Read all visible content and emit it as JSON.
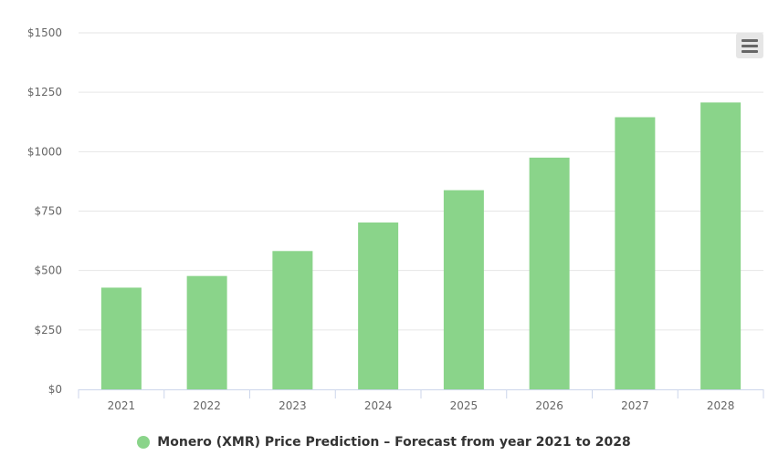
{
  "chart_data": {
    "type": "bar",
    "categories": [
      "2021",
      "2022",
      "2023",
      "2024",
      "2025",
      "2026",
      "2027",
      "2028"
    ],
    "series": [
      {
        "name": "Monero (XMR) Price Prediction – Forecast from year 2021 to 2028",
        "values": [
          428,
          477,
          582,
          702,
          838,
          975,
          1145,
          1207
        ],
        "color": "#8ad48a"
      }
    ],
    "y_ticks": [
      "$0",
      "$250",
      "$500",
      "$750",
      "$1000",
      "$1250",
      "$1500"
    ],
    "ylim": [
      0,
      1500
    ],
    "grid": true,
    "legend_position": "bottom-center"
  },
  "legend": {
    "label": "Monero (XMR) Price Prediction – Forecast from year 2021 to 2028",
    "color": "#8ad48a"
  },
  "menu": {
    "icon": "hamburger-menu-icon"
  }
}
